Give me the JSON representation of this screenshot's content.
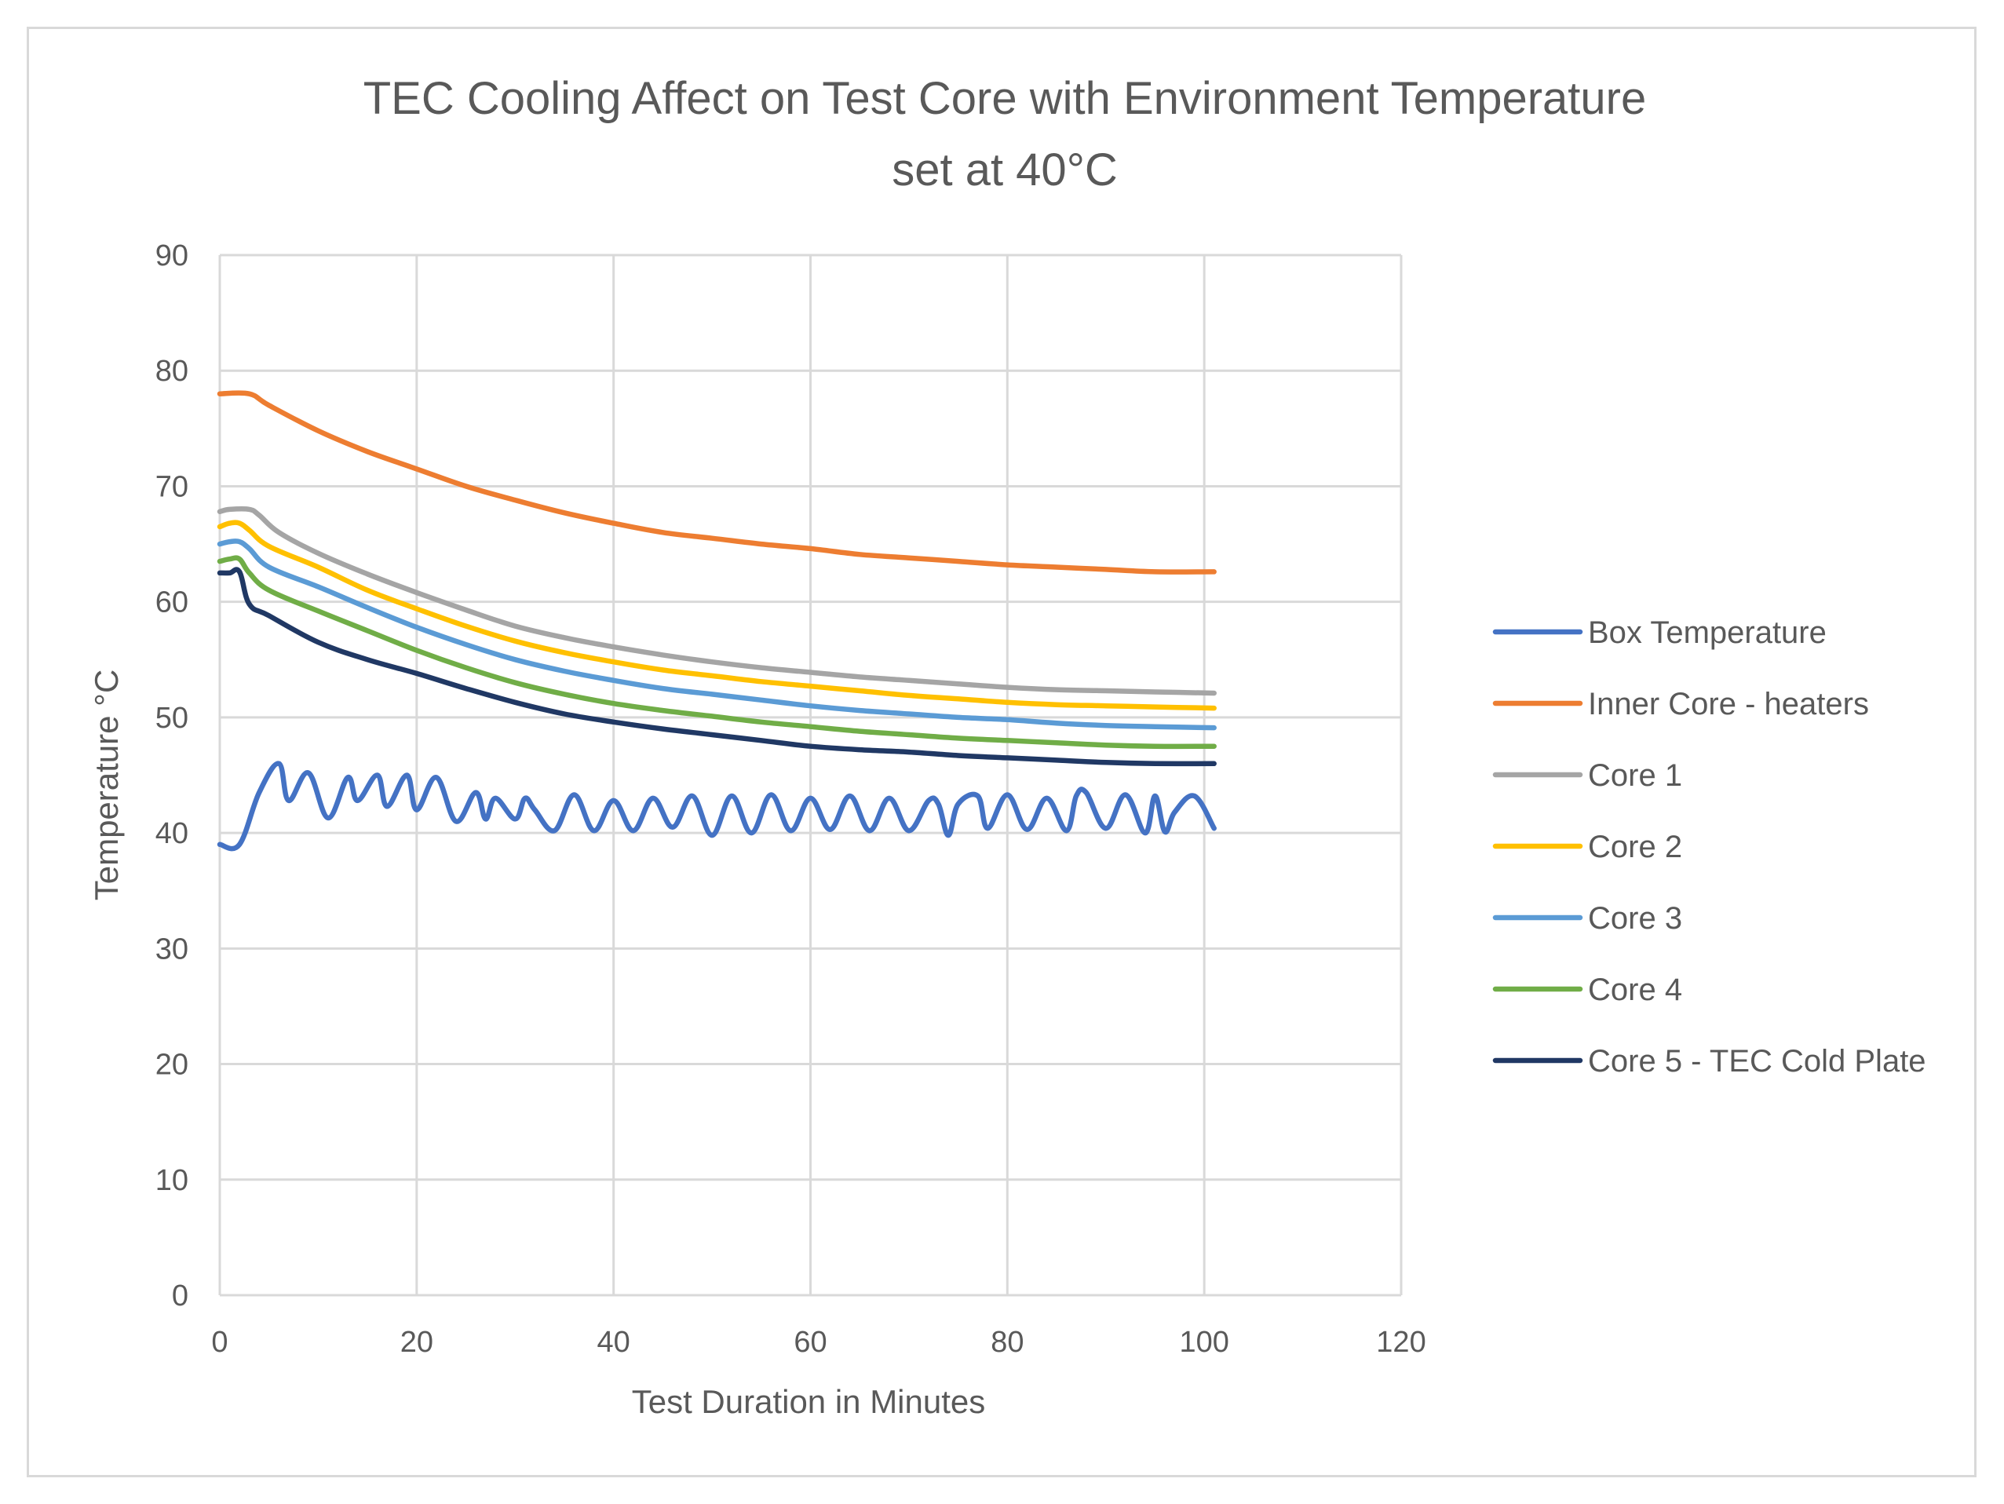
{
  "chart_data": {
    "type": "line",
    "title": "TEC Cooling Affect on Test Core with Environment Temperature set at 40°C",
    "title_lines": [
      "TEC Cooling Affect on Test Core with Environment Temperature",
      "set at 40°C"
    ],
    "xlabel": "Test Duration in Minutes",
    "ylabel": "Temperature °C",
    "xlim": [
      0,
      120
    ],
    "ylim": [
      0,
      90
    ],
    "xticks": [
      0,
      20,
      40,
      60,
      80,
      100,
      120
    ],
    "yticks": [
      0,
      10,
      20,
      30,
      40,
      50,
      60,
      70,
      80,
      90
    ],
    "x_tick_labels": [
      "0",
      "20",
      "40",
      "60",
      "80",
      "100",
      "120"
    ],
    "y_tick_labels": [
      "0",
      "10",
      "20",
      "30",
      "40",
      "50",
      "60",
      "70",
      "80",
      "90"
    ],
    "grid": true,
    "legend_position": "right",
    "series": [
      {
        "name": "Box Temperature",
        "color": "#4472c4",
        "x": [
          0,
          2,
          4,
          6,
          7,
          9,
          11,
          13,
          14,
          16,
          17,
          19,
          20,
          22,
          24,
          26,
          27,
          28,
          30,
          31,
          32,
          34,
          36,
          38,
          40,
          42,
          44,
          46,
          48,
          50,
          52,
          54,
          56,
          58,
          60,
          62,
          64,
          66,
          68,
          70,
          72,
          73,
          74,
          75,
          77,
          78,
          80,
          82,
          84,
          86,
          87,
          88,
          90,
          92,
          94,
          95,
          96,
          97,
          99,
          101
        ],
        "values": [
          39,
          39,
          43.5,
          46,
          42.8,
          45.2,
          41.3,
          44.8,
          42.8,
          45,
          42.3,
          45,
          42,
          44.8,
          41,
          43.5,
          41.2,
          43,
          41.2,
          43,
          42,
          40.2,
          43.3,
          40.2,
          42.8,
          40.2,
          43,
          40.5,
          43.2,
          39.8,
          43.2,
          40,
          43.3,
          40.2,
          43,
          40.3,
          43.2,
          40.2,
          43,
          40.2,
          42.8,
          42.5,
          39.8,
          42.5,
          43.2,
          40.4,
          43.3,
          40.3,
          43,
          40.2,
          43.2,
          43.5,
          40.4,
          43.3,
          40,
          43.2,
          40.1,
          41.8,
          43.2,
          40.4
        ]
      },
      {
        "name": "Inner Core - heaters",
        "color": "#ed7d31",
        "x": [
          0,
          3,
          5,
          10,
          15,
          20,
          25,
          30,
          35,
          40,
          45,
          50,
          55,
          60,
          65,
          70,
          75,
          80,
          85,
          90,
          95,
          101
        ],
        "values": [
          78,
          78,
          77,
          74.8,
          73,
          71.5,
          70,
          68.8,
          67.7,
          66.8,
          66,
          65.5,
          65,
          64.6,
          64.1,
          63.8,
          63.5,
          63.2,
          63,
          62.8,
          62.6,
          62.6
        ]
      },
      {
        "name": "Core 1",
        "color": "#a5a5a5",
        "x": [
          0,
          1,
          3,
          4,
          6,
          10,
          15,
          20,
          25,
          30,
          35,
          40,
          45,
          50,
          55,
          60,
          65,
          70,
          75,
          80,
          85,
          90,
          95,
          101
        ],
        "values": [
          67.8,
          68,
          68,
          67.5,
          66,
          64.2,
          62.4,
          60.8,
          59.3,
          57.9,
          56.9,
          56.1,
          55.4,
          54.8,
          54.3,
          53.9,
          53.5,
          53.2,
          52.9,
          52.6,
          52.4,
          52.3,
          52.2,
          52.1
        ]
      },
      {
        "name": "Core 2",
        "color": "#ffc000",
        "x": [
          0,
          1,
          2,
          3,
          5,
          10,
          15,
          20,
          25,
          30,
          35,
          40,
          45,
          50,
          55,
          60,
          65,
          70,
          75,
          80,
          85,
          90,
          95,
          101
        ],
        "values": [
          66.5,
          66.8,
          66.8,
          66.2,
          64.8,
          63,
          61,
          59.4,
          57.9,
          56.6,
          55.6,
          54.8,
          54.1,
          53.6,
          53.1,
          52.7,
          52.3,
          51.9,
          51.6,
          51.3,
          51.1,
          51,
          50.9,
          50.8
        ]
      },
      {
        "name": "Core 3",
        "color": "#5b9bd5",
        "x": [
          0,
          1,
          2,
          3,
          5,
          10,
          15,
          20,
          25,
          30,
          35,
          40,
          45,
          50,
          55,
          60,
          65,
          70,
          75,
          80,
          85,
          90,
          95,
          101
        ],
        "values": [
          65,
          65.2,
          65.2,
          64.6,
          63,
          61.3,
          59.5,
          57.8,
          56.3,
          55,
          54,
          53.2,
          52.5,
          52,
          51.5,
          51,
          50.6,
          50.3,
          50,
          49.8,
          49.5,
          49.3,
          49.2,
          49.1
        ]
      },
      {
        "name": "Core 4",
        "color": "#70ad47",
        "x": [
          0,
          1,
          2,
          3,
          5,
          10,
          15,
          20,
          25,
          30,
          35,
          40,
          45,
          50,
          55,
          60,
          65,
          70,
          75,
          80,
          85,
          90,
          95,
          101
        ],
        "values": [
          63.5,
          63.7,
          63.7,
          62.5,
          61,
          59.2,
          57.5,
          55.8,
          54.3,
          53,
          52,
          51.2,
          50.6,
          50.1,
          49.6,
          49.2,
          48.8,
          48.5,
          48.2,
          48,
          47.8,
          47.6,
          47.5,
          47.5
        ]
      },
      {
        "name": "Core 5 - TEC Cold Plate",
        "color": "#203864",
        "x": [
          0,
          1,
          2,
          3,
          5,
          10,
          15,
          20,
          25,
          30,
          35,
          40,
          45,
          50,
          55,
          60,
          65,
          70,
          75,
          80,
          85,
          90,
          95,
          101
        ],
        "values": [
          62.5,
          62.5,
          62.6,
          59.8,
          58.8,
          56.5,
          55,
          53.8,
          52.5,
          51.3,
          50.3,
          49.6,
          49,
          48.5,
          48,
          47.5,
          47.2,
          47,
          46.7,
          46.5,
          46.3,
          46.1,
          46,
          46
        ]
      }
    ]
  }
}
